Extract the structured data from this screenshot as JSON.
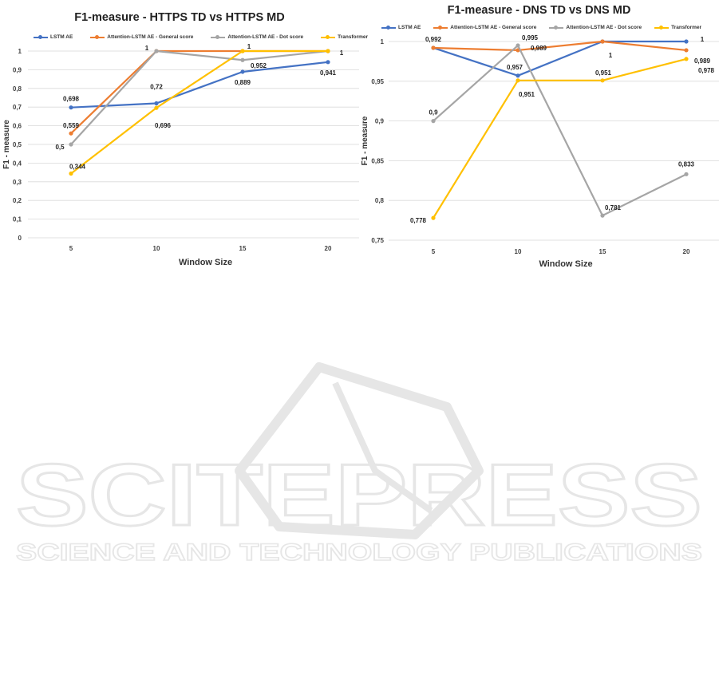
{
  "colors": {
    "lstm": "#4472c4",
    "general": "#ed7d31",
    "dot": "#a5a5a5",
    "transformer": "#ffc000",
    "grid": "#d9d9d9",
    "text": "#404040",
    "watermark": "#e6e6e6"
  },
  "watermark": {
    "main": "SCITEPRESS",
    "sub": "SCIENCE AND TECHNOLOGY PUBLICATIONS"
  },
  "chart_data": [
    {
      "type": "line",
      "title": "F1-measure - HTTPS TD vs HTTPS MD",
      "xlabel": "Window Size",
      "ylabel": "F1 - measure",
      "categories": [
        "5",
        "10",
        "15",
        "20"
      ],
      "ylim": [
        0,
        1
      ],
      "yticks": [
        "0",
        "0,1",
        "0,2",
        "0,3",
        "0,4",
        "0,5",
        "0,6",
        "0,7",
        "0,8",
        "0,9",
        "1"
      ],
      "grid": true,
      "legend_position": "top",
      "series": [
        {
          "name": "LSTM AE",
          "values": [
            0.698,
            0.72,
            0.889,
            0.941
          ],
          "labels": [
            "0,698",
            "0,72",
            "0,889",
            "0,941"
          ]
        },
        {
          "name": "Attention-LSTM AE - General score",
          "values": [
            0.559,
            1,
            1,
            1
          ],
          "labels": [
            "0,559",
            "",
            "",
            ""
          ]
        },
        {
          "name": "Attention-LSTM AE - Dot score",
          "values": [
            0.5,
            1,
            0.952,
            1
          ],
          "labels": [
            "0,5",
            "1",
            "0,952",
            "1"
          ]
        },
        {
          "name": "Transformer",
          "values": [
            0.344,
            0.696,
            1,
            1
          ],
          "labels": [
            "0,344",
            "0,696",
            "1",
            ""
          ]
        }
      ]
    },
    {
      "type": "line",
      "title": "F1-measure - DNS TD vs DNS MD",
      "xlabel": "Window Size",
      "ylabel": "F1 - measure",
      "categories": [
        "5",
        "10",
        "15",
        "20"
      ],
      "ylim": [
        0.75,
        1
      ],
      "yticks": [
        "0,75",
        "0,8",
        "0,85",
        "0,9",
        "0,95",
        "1"
      ],
      "grid": true,
      "legend_position": "top",
      "series": [
        {
          "name": "LSTM AE",
          "values": [
            0.992,
            0.957,
            1,
            1
          ],
          "labels": [
            "",
            "0,957",
            "",
            "1"
          ]
        },
        {
          "name": "Attention-LSTM AE - General score",
          "values": [
            0.992,
            0.989,
            1,
            0.989
          ],
          "labels": [
            "0,992",
            "0,989",
            "1",
            "0,989"
          ]
        },
        {
          "name": "Attention-LSTM AE - Dot score",
          "values": [
            0.9,
            0.995,
            0.781,
            0.833
          ],
          "labels": [
            "0,9",
            "0,995",
            "0,781",
            "0,833"
          ]
        },
        {
          "name": "Transformer",
          "values": [
            0.778,
            0.951,
            0.951,
            0.978
          ],
          "labels": [
            "0,778",
            "0,951",
            "0,951",
            "0,978"
          ]
        }
      ]
    }
  ]
}
